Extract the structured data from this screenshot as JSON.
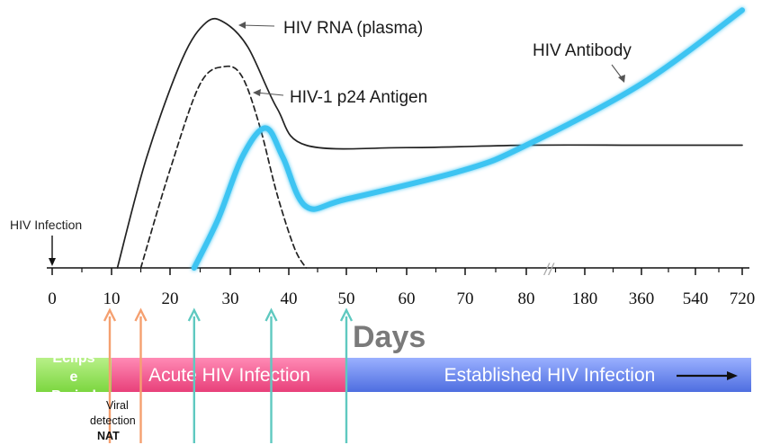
{
  "chart_data": {
    "type": "line",
    "xlabel": "Days",
    "x_ticks": [
      "0",
      "10",
      "20",
      "30",
      "40",
      "50",
      "60",
      "70",
      "80",
      "180",
      "360",
      "540",
      "720"
    ],
    "axis_break_marker": "//",
    "series": [
      {
        "name": "HIV RNA (plasma)",
        "style": "solid",
        "color": "#222222",
        "x": [
          11,
          16,
          22,
          26,
          29,
          33,
          38,
          43,
          60,
          80,
          360,
          720
        ],
        "y": [
          0,
          0.45,
          0.85,
          1.0,
          1.0,
          0.9,
          0.65,
          0.5,
          0.49,
          0.5,
          0.5,
          0.5
        ]
      },
      {
        "name": "HIV-1 p24 Antigen",
        "style": "dashed",
        "color": "#222222",
        "x": [
          15,
          20,
          25,
          29,
          32,
          35,
          38,
          41,
          43
        ],
        "y": [
          0,
          0.4,
          0.75,
          0.82,
          0.78,
          0.58,
          0.3,
          0.08,
          0
        ]
      },
      {
        "name": "HIV Antibody",
        "style": "solid",
        "color": "#3cc4f2",
        "x": [
          24,
          28,
          32,
          36,
          39,
          43,
          50,
          70,
          80,
          360,
          720
        ],
        "y": [
          0,
          0.2,
          0.45,
          0.57,
          0.45,
          0.25,
          0.28,
          0.4,
          0.5,
          0.75,
          1.05
        ]
      }
    ],
    "annotations": [
      {
        "text": "HIV Infection",
        "x": 0
      }
    ]
  },
  "markers": [
    {
      "x": 10,
      "color": "#f5a070",
      "label": "Eclipse Period end"
    },
    {
      "x": 15,
      "color": "#f5a070",
      "label": "Viral detection NAT"
    },
    {
      "x": 24,
      "color": "#5fc9c0",
      "label": ""
    },
    {
      "x": 37,
      "color": "#5fc9c0",
      "label": ""
    },
    {
      "x": 50,
      "color": "#5fc9c0",
      "label": ""
    }
  ],
  "phases": [
    {
      "label": "Eclipse Period",
      "color": "#8ee050"
    },
    {
      "label": "Acute HIV Infection",
      "color": "#f0508a"
    },
    {
      "label": "Established HIV Infection",
      "color": "#5a78e6"
    }
  ],
  "nat_label_line1": "Viral",
  "nat_label_line2": "detection",
  "nat_label_line3": "NAT"
}
